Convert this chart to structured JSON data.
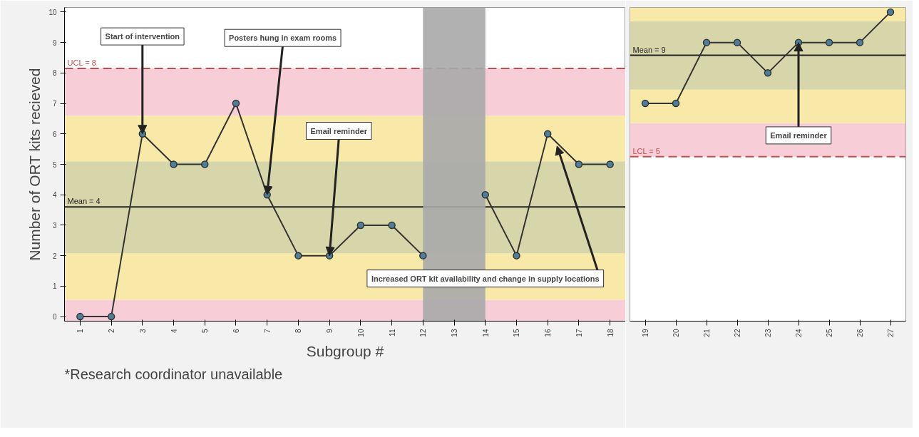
{
  "chart_data": [
    {
      "type": "line",
      "xlabel": "Subgroup #",
      "ylabel": "Number of ORT kits recieved",
      "x": [
        1,
        2,
        3,
        4,
        5,
        6,
        7,
        8,
        9,
        10,
        11,
        12,
        13,
        14,
        15,
        16,
        17,
        18
      ],
      "series": [
        {
          "color": "#333333",
          "values": [
            0,
            0,
            6,
            5,
            5,
            7,
            4,
            2,
            2,
            3,
            3,
            2,
            null,
            4,
            2,
            6,
            5,
            5
          ]
        }
      ],
      "marker": "circle",
      "line_style": "solid",
      "grid": false,
      "xlim": [
        0.5,
        18.5
      ],
      "ylim": [
        -0.15,
        10.15
      ],
      "xticks": [
        1,
        2,
        3,
        4,
        5,
        6,
        7,
        8,
        9,
        10,
        11,
        12,
        13,
        14,
        15,
        16,
        17,
        18
      ],
      "yticks": [
        0,
        1,
        2,
        3,
        4,
        5,
        6,
        7,
        8,
        9,
        10
      ],
      "bands": [
        {
          "axis": "y",
          "from": -0.15,
          "to": 0.55,
          "color": "#f7cdd8"
        },
        {
          "axis": "y",
          "from": 0.55,
          "to": 2.08,
          "color": "#f9e9a8"
        },
        {
          "axis": "y",
          "from": 2.08,
          "to": 5.1,
          "color": "#d6d6aa"
        },
        {
          "axis": "y",
          "from": 5.1,
          "to": 6.6,
          "color": "#f9e9a8"
        },
        {
          "axis": "y",
          "from": 6.6,
          "to": 8.15,
          "color": "#f7cdd8"
        },
        {
          "axis": "x",
          "from": 12,
          "to": 14,
          "color": "#a8a8aa"
        }
      ],
      "ref_lines": [
        {
          "axis": "y",
          "value": 8.15,
          "label": "UCL = 8",
          "color": "#c0504d",
          "line_style": "dashed"
        },
        {
          "axis": "y",
          "value": 3.6,
          "label": "Mean = 4",
          "color": "#222222",
          "line_style": "solid"
        }
      ],
      "annotations": [
        {
          "text": "Start of intervention",
          "x": 3,
          "y": 6
        },
        {
          "text": "Posters hung in exam rooms",
          "x": 7,
          "y": 4
        },
        {
          "text": "Email reminder",
          "x": 9,
          "y": 2
        },
        {
          "text": "Increased ORT kit availability and change in supply locations",
          "x": 16.3,
          "y": 5.6
        },
        "*Research coordinator unavailable"
      ]
    },
    {
      "type": "line",
      "x": [
        19,
        20,
        21,
        22,
        23,
        24,
        25,
        26,
        27
      ],
      "series": [
        {
          "color": "#333333",
          "values": [
            7,
            7,
            9,
            9,
            8,
            9,
            9,
            9,
            10
          ]
        }
      ],
      "marker": "circle",
      "line_style": "solid",
      "grid": false,
      "tick_labels": "x",
      "xlim": [
        18.5,
        27.5
      ],
      "ylim": [
        -0.15,
        10.15
      ],
      "xticks": [
        19,
        20,
        21,
        22,
        23,
        24,
        25,
        26,
        27
      ],
      "bands": [
        {
          "axis": "y",
          "from": 5.25,
          "to": 6.35,
          "color": "#f7cdd8"
        },
        {
          "axis": "y",
          "from": 6.35,
          "to": 7.45,
          "color": "#f9e9a8"
        },
        {
          "axis": "y",
          "from": 7.45,
          "to": 9.7,
          "color": "#d6d6aa"
        },
        {
          "axis": "y",
          "from": 9.7,
          "to": 10.15,
          "color": "#f9e9a8"
        }
      ],
      "ref_lines": [
        {
          "axis": "y",
          "value": 8.58,
          "label": "Mean = 9",
          "color": "#222222",
          "line_style": "solid"
        },
        {
          "axis": "y",
          "value": 5.25,
          "label": "LCL = 5",
          "color": "#c0504d",
          "line_style": "dashed"
        }
      ],
      "annotations": [
        {
          "text": "Email reminder",
          "x": 24,
          "y": 9
        }
      ]
    }
  ]
}
